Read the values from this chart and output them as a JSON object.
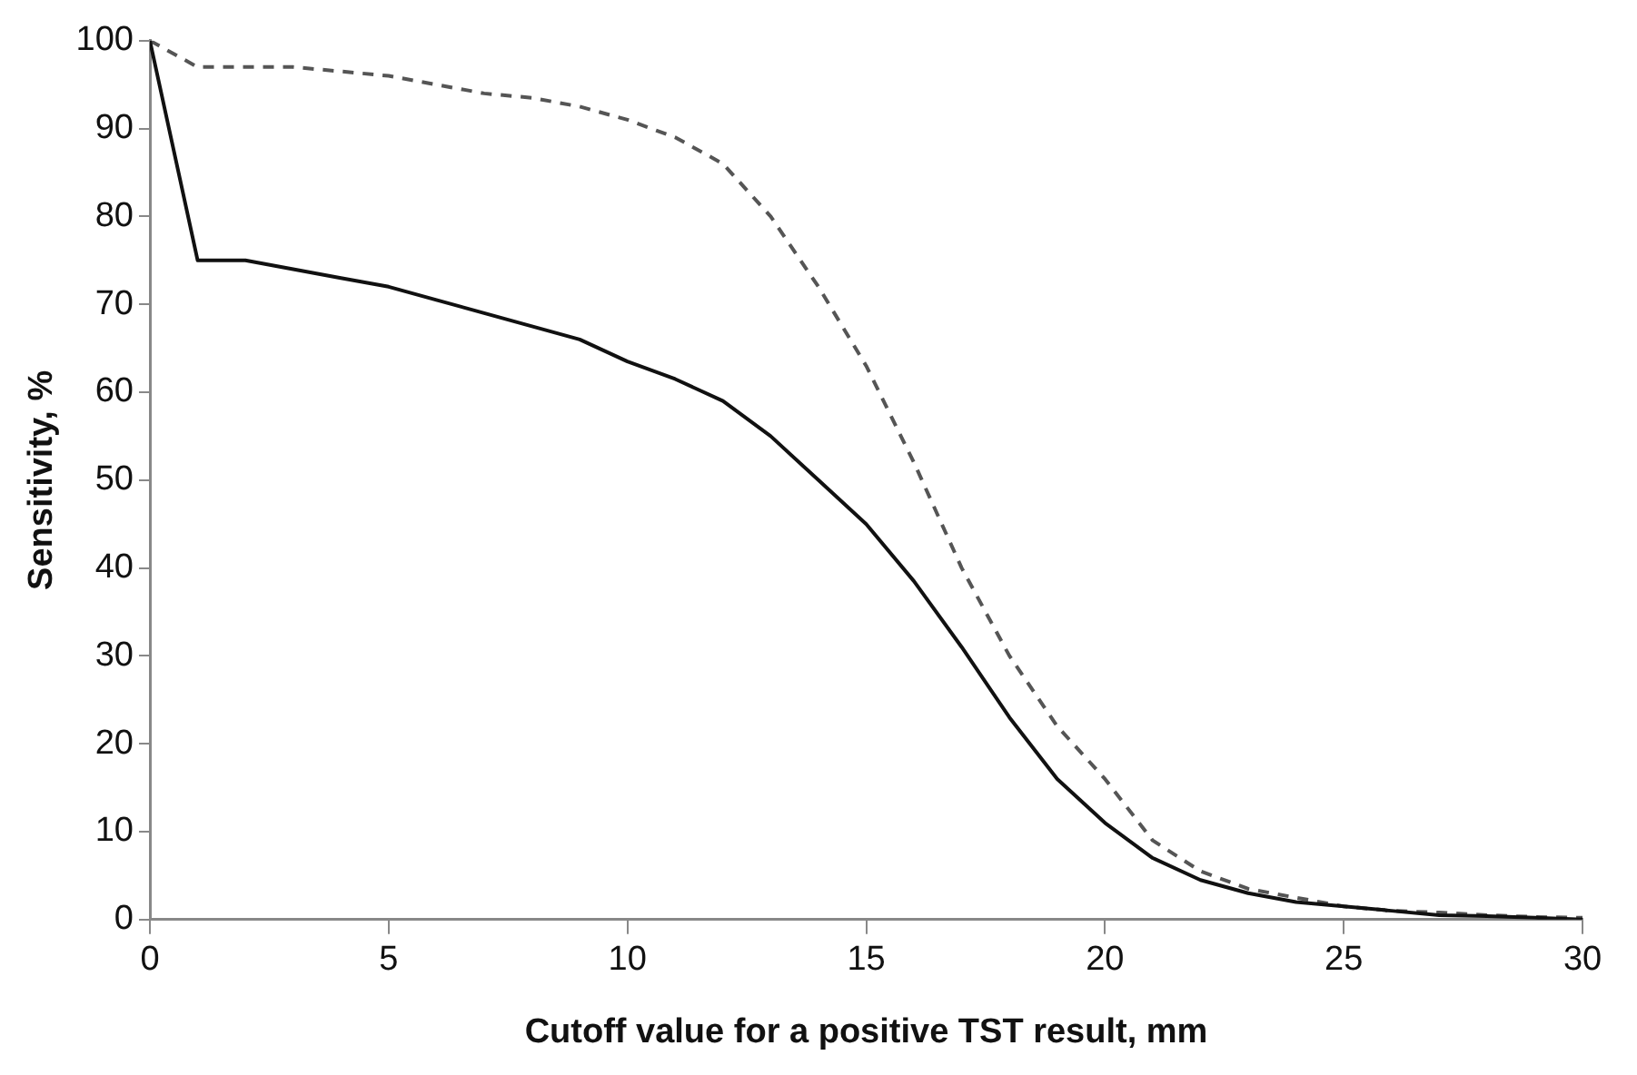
{
  "chart_data": {
    "type": "line",
    "xlabel": "Cutoff value for a positive TST result, mm",
    "ylabel": "Sensitivity, %",
    "x": [
      0,
      1,
      2,
      3,
      4,
      5,
      6,
      7,
      8,
      9,
      10,
      11,
      12,
      13,
      14,
      15,
      16,
      17,
      18,
      19,
      20,
      21,
      22,
      23,
      24,
      25,
      26,
      27,
      28,
      29,
      30
    ],
    "series": [
      {
        "color": "#111111",
        "line_style": "solid",
        "values": [
          100,
          75,
          75,
          74,
          73,
          72,
          70.5,
          69,
          67.5,
          66,
          63.5,
          61.5,
          59,
          55,
          50,
          45,
          38.5,
          31,
          23,
          16,
          11,
          7,
          4.5,
          3,
          2,
          1.5,
          1,
          0.5,
          0.4,
          0.2,
          0
        ]
      },
      {
        "color": "#555555",
        "line_style": "dashed",
        "values": [
          100,
          97,
          97,
          97,
          96.5,
          96,
          95,
          94,
          93.5,
          92.5,
          91,
          89,
          86,
          80,
          72,
          63,
          52,
          40,
          30,
          22,
          16,
          9,
          5.5,
          3.5,
          2.5,
          1.5,
          1,
          0.8,
          0.5,
          0.3,
          0.2
        ]
      }
    ],
    "xlim": [
      0,
      30
    ],
    "xticks": [
      0,
      5,
      10,
      15,
      20,
      25,
      30
    ],
    "ylim": [
      0,
      100
    ],
    "yticks": [
      0,
      10,
      20,
      30,
      40,
      50,
      60,
      70,
      80,
      90,
      100
    ],
    "grid": false,
    "legend": false,
    "marker": "none"
  }
}
